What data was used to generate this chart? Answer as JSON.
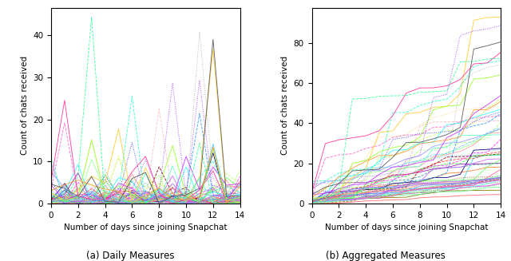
{
  "n_users": 60,
  "n_days": 15,
  "x_ticks": [
    0,
    2,
    4,
    6,
    8,
    10,
    12,
    14
  ],
  "xlabel": "Number of days since joining Snapchat",
  "ylabel": "Count of chats received",
  "label_a": "(a) Daily Measures",
  "label_b": "(b) Aggregated Measures",
  "background_color": "#ffffff",
  "seed": 7,
  "figsize": [
    6.4,
    3.27
  ],
  "dpi": 100,
  "linewidth": 0.65,
  "alpha": 0.9,
  "colors": [
    "#e6194b",
    "#3cb44b",
    "#ffe119",
    "#4363d8",
    "#f58231",
    "#911eb4",
    "#42d4f4",
    "#f032e6",
    "#bfef45",
    "#fabebe",
    "#469990",
    "#e6beff",
    "#9A6324",
    "#800000",
    "#aaffc3",
    "#808000",
    "#000075",
    "#808080",
    "#ff6666",
    "#66ff66",
    "#6666ff",
    "#ff66ff",
    "#66ffff",
    "#ffaa66",
    "#aa66ff",
    "#66ffaa",
    "#ff6699",
    "#99ff66",
    "#6699ff",
    "#ff9966",
    "#66ff99",
    "#9966ff",
    "#ff66aa",
    "#aaff66",
    "#66aaff",
    "#ff9999",
    "#99ff99",
    "#9999ff",
    "#ffcc66",
    "#66ccff",
    "#cc66ff",
    "#ff66cc",
    "#ccff66",
    "#66ffcc",
    "#ff3333",
    "#33ff33",
    "#3333ff",
    "#ff33ff",
    "#33ffff",
    "#ffcc33",
    "#cc33ff",
    "#33ffcc",
    "#ff3399",
    "#99ff33",
    "#3399ff",
    "#ff9933",
    "#33ff99",
    "#9933ff",
    "#aaaaaa",
    "#555555"
  ]
}
